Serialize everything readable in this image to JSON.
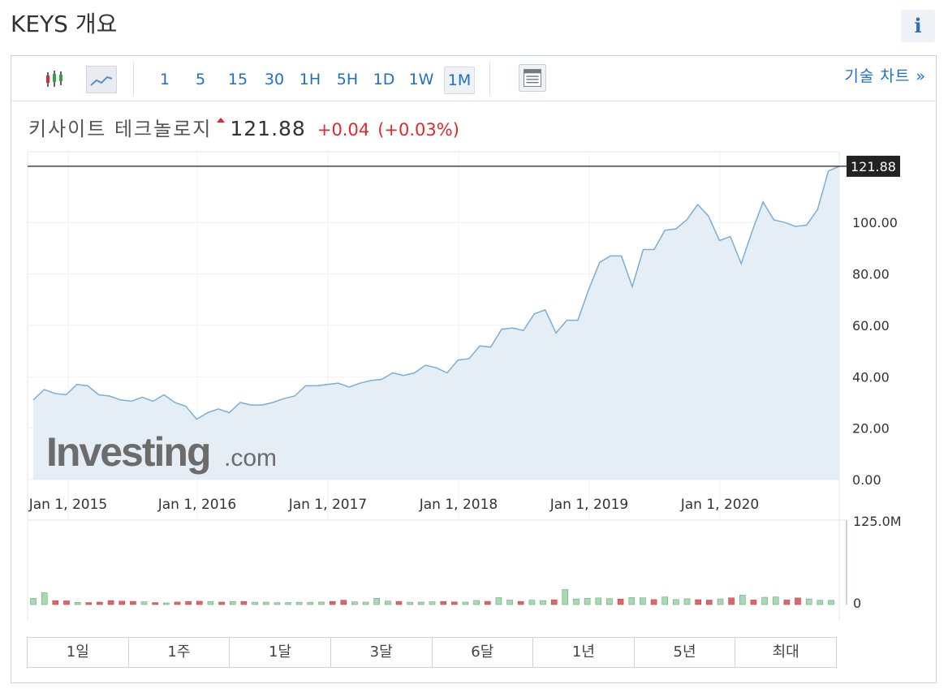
{
  "header": {
    "title": "KEYS 개요",
    "info_label": "i"
  },
  "toolbar": {
    "intervals": [
      "1",
      "5",
      "15",
      "30",
      "1H",
      "5H",
      "1D",
      "1W",
      "1M"
    ],
    "active_interval": "1M",
    "tech_chart_link": "기술 차트 »"
  },
  "quote": {
    "name": "키사이트 테크놀로지",
    "last": "121.88",
    "change": "+0.04",
    "change_pct": "(+0.03%)",
    "direction": "up"
  },
  "colors": {
    "line": "#7aaed6",
    "area": "#e6eef5",
    "up_volume": "#a9d8b4",
    "down_volume": "#d9686a",
    "change": "#e0292d",
    "link": "#1e6fc6"
  },
  "watermark": {
    "main": "Investing",
    "suffix": ".com"
  },
  "chart_data": [
    {
      "type": "area",
      "title": "",
      "ylim": [
        0,
        125
      ],
      "y_ticks": [
        "0.00",
        "20.00",
        "40.00",
        "60.00",
        "80.00",
        "100.00"
      ],
      "x_ticks": [
        "Jan 1, 2015",
        "Jan 1, 2016",
        "Jan 1, 2017",
        "Jan 1, 2018",
        "Jan 1, 2019",
        "Jan 1, 2020"
      ],
      "last_price_label": "121.88",
      "last_price": 121.88,
      "x_start": "2014-10",
      "series": [
        {
          "values": [
            31,
            35,
            33.5,
            33,
            37,
            36.5,
            33,
            32.5,
            31,
            30.5,
            32,
            30.5,
            33,
            30,
            28.5,
            23.5,
            26,
            27.5,
            26,
            30,
            29,
            29,
            30,
            31.5,
            32.5,
            36.5,
            36.5,
            37,
            37.5,
            36,
            37.5,
            38.5,
            39,
            41.5,
            40.5,
            41.5,
            44.5,
            43.5,
            41.5,
            46.5,
            47,
            52,
            51.5,
            58.5,
            59,
            58,
            64.5,
            66,
            57,
            62,
            62,
            74,
            84.5,
            87,
            87,
            75,
            89.5,
            89.5,
            97,
            97.5,
            101,
            107,
            102.5,
            93,
            94.5,
            84,
            96.5,
            108,
            101,
            100,
            98.5,
            99,
            105,
            120,
            121.88
          ]
        }
      ]
    },
    {
      "type": "bar",
      "title": "",
      "ylim": [
        0,
        125000000
      ],
      "y_ticks": [
        "0",
        "125.0M"
      ],
      "series": [
        {
          "values": [
            9.6,
            18.5,
            6.1,
            5.8,
            3.5,
            3.1,
            3.8,
            6.3,
            5.4,
            5.0,
            4.3,
            3.0,
            2.6,
            4.0,
            4.8,
            5.2,
            4.6,
            3.8,
            4.7,
            4.8,
            3.7,
            3.7,
            3.1,
            3.1,
            3.6,
            3.6,
            3.9,
            4.9,
            6.8,
            4.2,
            3.8,
            9.7,
            5.3,
            5.0,
            3.7,
            3.8,
            4.3,
            4.8,
            4.1,
            3.8,
            6.4,
            5.0,
            10.8,
            7.0,
            4.8,
            6.9,
            6.3,
            7.5,
            23.5,
            8.7,
            9.7,
            10.3,
            9.3,
            8.7,
            10.9,
            10.6,
            7.8,
            11.9,
            7.8,
            9.1,
            7.6,
            7.0,
            8.8,
            10.4,
            14.7,
            7.1,
            11.3,
            11.9,
            7.2,
            10.3,
            8.8,
            6.6,
            6.6
          ],
          "direction": [
            "up",
            "up",
            "down",
            "down",
            "up",
            "down",
            "down",
            "down",
            "down",
            "down",
            "up",
            "down",
            "up",
            "down",
            "down",
            "down",
            "up",
            "down",
            "up",
            "down",
            "up",
            "up",
            "up",
            "up",
            "up",
            "up",
            "up",
            "down",
            "down",
            "up",
            "up",
            "up",
            "up",
            "down",
            "up",
            "up",
            "up",
            "down",
            "down",
            "up",
            "up",
            "down",
            "up",
            "up",
            "down",
            "up",
            "up",
            "down",
            "up",
            "up",
            "up",
            "up",
            "up",
            "down",
            "up",
            "up",
            "down",
            "up",
            "up",
            "up",
            "down",
            "down",
            "up",
            "down",
            "up",
            "down",
            "up",
            "up",
            "down",
            "down",
            "up",
            "up",
            "up"
          ],
          "unit": "M"
        }
      ]
    }
  ],
  "ranges": [
    "1일",
    "1주",
    "1달",
    "3달",
    "6달",
    "1년",
    "5년",
    "최대"
  ]
}
